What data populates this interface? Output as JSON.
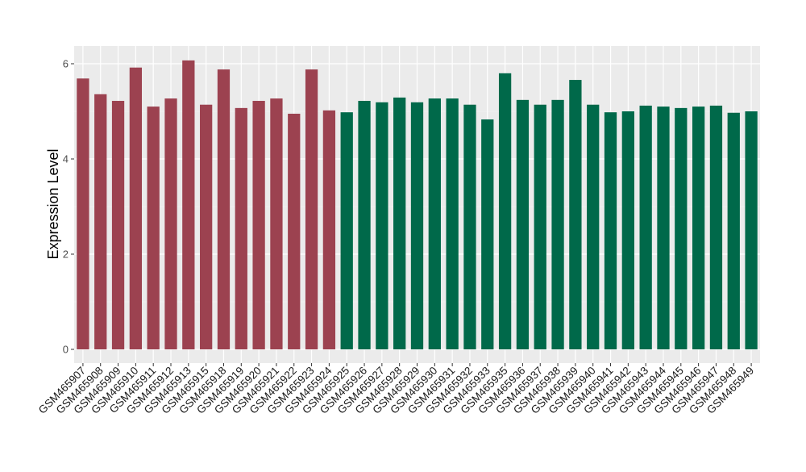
{
  "chart_data": {
    "type": "bar",
    "title": "",
    "xlabel": "",
    "ylabel": "Expression Level",
    "ylim": [
      0,
      6.4
    ],
    "yticks": [
      0,
      2,
      4,
      6
    ],
    "grid": true,
    "legend": "none",
    "colors": {
      "group1": "#9C4250",
      "group2": "#00694A",
      "panel": "#EBEBEB",
      "grid": "#FFFFFF"
    },
    "categories": [
      "GSM465907",
      "GSM465908",
      "GSM465909",
      "GSM465910",
      "GSM465911",
      "GSM465912",
      "GSM465913",
      "GSM465915",
      "GSM465918",
      "GSM465919",
      "GSM465920",
      "GSM465921",
      "GSM465922",
      "GSM465923",
      "GSM465924",
      "GSM465925",
      "GSM465926",
      "GSM465927",
      "GSM465928",
      "GSM465929",
      "GSM465930",
      "GSM465931",
      "GSM465932",
      "GSM465933",
      "GSM465935",
      "GSM465936",
      "GSM465937",
      "GSM465938",
      "GSM465939",
      "GSM465940",
      "GSM465941",
      "GSM465942",
      "GSM465943",
      "GSM465944",
      "GSM465945",
      "GSM465946",
      "GSM465947",
      "GSM465948",
      "GSM465949"
    ],
    "values": [
      5.69,
      5.36,
      5.22,
      5.92,
      5.1,
      5.27,
      6.07,
      5.14,
      5.88,
      5.07,
      5.22,
      5.27,
      4.95,
      5.88,
      5.02,
      4.98,
      5.22,
      5.19,
      5.29,
      5.19,
      5.27,
      5.27,
      5.14,
      4.83,
      5.8,
      5.24,
      5.14,
      5.24,
      5.66,
      5.14,
      4.98,
      5.0,
      5.12,
      5.1,
      5.07,
      5.1,
      5.12,
      4.97,
      5.0
    ],
    "groups": [
      1,
      1,
      1,
      1,
      1,
      1,
      1,
      1,
      1,
      1,
      1,
      1,
      1,
      1,
      1,
      2,
      2,
      2,
      2,
      2,
      2,
      2,
      2,
      2,
      2,
      2,
      2,
      2,
      2,
      2,
      2,
      2,
      2,
      2,
      2,
      2,
      2,
      2,
      2
    ]
  }
}
